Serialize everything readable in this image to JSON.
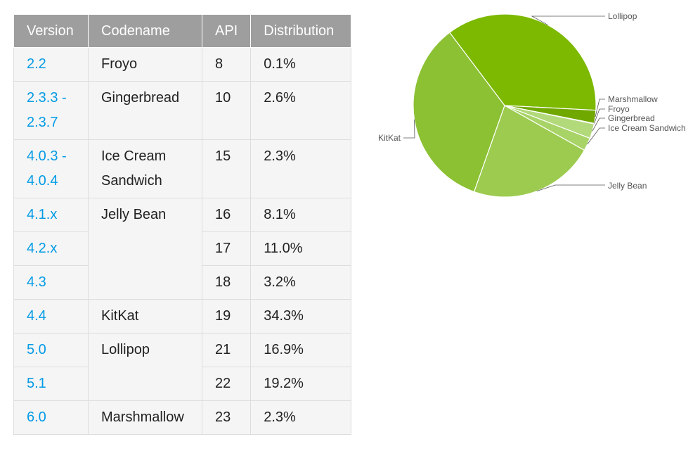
{
  "table": {
    "headers": {
      "version": "Version",
      "codename": "Codename",
      "api": "API",
      "distribution": "Distribution"
    },
    "rows": [
      {
        "version": "2.2",
        "codename": "Froyo",
        "api": "8",
        "distribution": "0.1%"
      },
      {
        "version": "2.3.3 - 2.3.7",
        "codename": "Gingerbread",
        "api": "10",
        "distribution": "2.6%"
      },
      {
        "version": "4.0.3 - 4.0.4",
        "codename": "Ice Cream Sandwich",
        "api": "15",
        "distribution": "2.3%"
      },
      {
        "version": "4.1.x",
        "codename": "Jelly Bean",
        "api": "16",
        "distribution": "8.1%"
      },
      {
        "version": "4.2.x",
        "codename": "",
        "api": "17",
        "distribution": "11.0%"
      },
      {
        "version": "4.3",
        "codename": "",
        "api": "18",
        "distribution": "3.2%"
      },
      {
        "version": "4.4",
        "codename": "KitKat",
        "api": "19",
        "distribution": "34.3%"
      },
      {
        "version": "5.0",
        "codename": "Lollipop",
        "api": "21",
        "distribution": "16.9%"
      },
      {
        "version": "5.1",
        "codename": "",
        "api": "22",
        "distribution": "19.2%"
      },
      {
        "version": "6.0",
        "codename": "Marshmallow",
        "api": "23",
        "distribution": "2.3%"
      }
    ]
  },
  "chart_data": {
    "type": "pie",
    "title": "",
    "start_label": "Lollipop",
    "direction": "clockwise",
    "slices": [
      {
        "label": "Lollipop",
        "value": 36.1,
        "color": "#7cb900"
      },
      {
        "label": "Marshmallow",
        "value": 2.3,
        "color": "#70a800"
      },
      {
        "label": "Froyo",
        "value": 0.1,
        "color": "#b7dc7f"
      },
      {
        "label": "Gingerbread",
        "value": 2.6,
        "color": "#b2d97a"
      },
      {
        "label": "Ice Cream Sandwich",
        "value": 2.3,
        "color": "#a8d366"
      },
      {
        "label": "Jelly Bean",
        "value": 22.3,
        "color": "#9ccb4f"
      },
      {
        "label": "KitKat",
        "value": 34.3,
        "color": "#8bc133"
      }
    ]
  }
}
